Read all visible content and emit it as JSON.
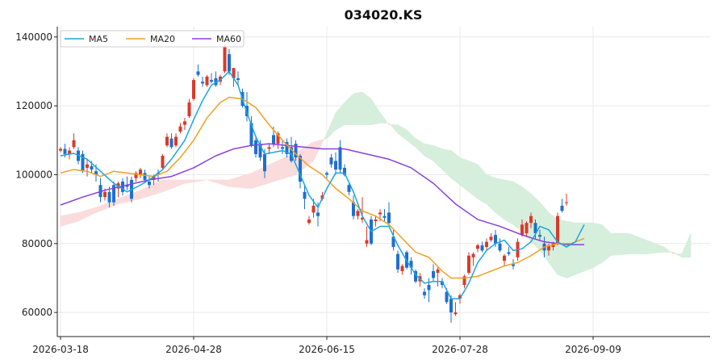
{
  "chart_data": {
    "type": "candlestick",
    "title": "034020.KS",
    "xlabel": "",
    "ylabel": "",
    "ylim": [
      53000,
      143000
    ],
    "y_ticks": [
      60000,
      80000,
      100000,
      120000,
      140000
    ],
    "y_tick_labels": [
      "60000",
      "80000",
      "100000",
      "120000",
      "140000"
    ],
    "x_ticks": [
      0,
      30,
      60,
      90,
      120
    ],
    "x_tick_labels": [
      "2026-03-18",
      "2026-04-28",
      "2026-06-15",
      "2026-07-28",
      "2026-09-09"
    ],
    "x_range": [
      -1,
      146
    ],
    "grid": true,
    "legend": {
      "placement": "top-left",
      "entries": [
        "MA5",
        "MA20",
        "MA60"
      ]
    },
    "colors": {
      "up": "#d93a2b",
      "down": "#1f6fd1",
      "ma5": "#1aa6e0",
      "ma20": "#f0a020",
      "ma60": "#8a3fe0",
      "cloud_bull": "#d6eedc",
      "cloud_bear": "#fbdcdc"
    },
    "candles": [
      [
        107000,
        108000,
        106500,
        107500
      ],
      [
        107500,
        109000,
        105000,
        106000
      ],
      [
        106000,
        108000,
        104500,
        107000
      ],
      [
        108000,
        112000,
        107500,
        110000
      ],
      [
        107000,
        108000,
        103000,
        104000
      ],
      [
        106000,
        107000,
        100500,
        101000
      ],
      [
        102000,
        104500,
        99500,
        103000
      ],
      [
        102500,
        104000,
        100500,
        101500
      ],
      [
        101000,
        103000,
        98000,
        100000
      ],
      [
        97000,
        99000,
        92000,
        93500
      ],
      [
        93500,
        96000,
        92500,
        95000
      ],
      [
        95000,
        96500,
        90500,
        92000
      ],
      [
        97000,
        98000,
        91000,
        92000
      ],
      [
        96000,
        98000,
        93500,
        97500
      ],
      [
        98000,
        99000,
        94000,
        95000
      ],
      [
        97000,
        99500,
        95500,
        96500
      ],
      [
        98500,
        99500,
        92000,
        93000
      ],
      [
        99000,
        101000,
        98000,
        100500
      ],
      [
        100000,
        102000,
        99000,
        101500
      ],
      [
        100500,
        101500,
        97500,
        98500
      ],
      [
        98000,
        99500,
        96000,
        97000
      ],
      [
        98500,
        100000,
        97000,
        99500
      ],
      [
        100500,
        101500,
        98000,
        100000
      ],
      [
        102000,
        106000,
        101500,
        105500
      ],
      [
        108500,
        112000,
        108000,
        111000
      ],
      [
        110500,
        112000,
        107500,
        108000
      ],
      [
        108500,
        112000,
        108000,
        111000
      ],
      [
        112500,
        115000,
        112000,
        114000
      ],
      [
        114500,
        116500,
        113000,
        115500
      ],
      [
        117000,
        122000,
        116500,
        121000
      ],
      [
        122000,
        128000,
        121500,
        127500
      ],
      [
        130000,
        132000,
        128500,
        129000
      ],
      [
        127000,
        128500,
        125500,
        126500
      ],
      [
        126000,
        129000,
        125500,
        128500
      ],
      [
        127500,
        129500,
        126500,
        127000
      ],
      [
        128000,
        130000,
        125500,
        126000
      ],
      [
        127000,
        129000,
        126000,
        128500
      ],
      [
        130000,
        138000,
        129500,
        137000
      ],
      [
        135000,
        136500,
        129000,
        130000
      ],
      [
        128000,
        131000,
        125500,
        131000
      ],
      [
        128000,
        130000,
        126000,
        127500
      ],
      [
        124000,
        125000,
        119500,
        120000
      ],
      [
        120000,
        124000,
        115500,
        117000
      ],
      [
        115000,
        117000,
        108000,
        108500
      ],
      [
        110000,
        111500,
        105000,
        106000
      ],
      [
        109000,
        110000,
        104000,
        105000
      ],
      [
        106000,
        107500,
        99000,
        101000
      ],
      [
        107500,
        109000,
        106000,
        108000
      ],
      [
        111500,
        114000,
        108000,
        109000
      ],
      [
        109000,
        112500,
        107500,
        112000
      ],
      [
        108000,
        110000,
        106000,
        107500
      ],
      [
        109500,
        110500,
        105000,
        106000
      ],
      [
        108000,
        111000,
        103500,
        104000
      ],
      [
        109000,
        110000,
        104000,
        105000
      ],
      [
        105500,
        106000,
        96000,
        98000
      ],
      [
        95000,
        97000,
        90000,
        93000
      ],
      [
        86000,
        88000,
        85500,
        87000
      ],
      [
        89000,
        93000,
        87500,
        91000
      ],
      [
        89000,
        92000,
        85000,
        88000
      ],
      [
        93000,
        95000,
        92500,
        94000
      ],
      [
        100500,
        101000,
        99000,
        100000
      ],
      [
        105000,
        106000,
        102000,
        103000
      ],
      [
        104000,
        106500,
        100000,
        101500
      ],
      [
        108000,
        110000,
        100500,
        101500
      ],
      [
        102000,
        103000,
        99500,
        100000
      ],
      [
        97000,
        97500,
        94000,
        95000
      ],
      [
        92000,
        94000,
        87000,
        88000
      ],
      [
        88000,
        90000,
        87000,
        89500
      ],
      [
        87000,
        93500,
        86000,
        87500
      ],
      [
        80000,
        85000,
        79000,
        81000
      ],
      [
        87000,
        88000,
        79500,
        80000
      ],
      [
        86500,
        88000,
        85000,
        87000
      ],
      [
        88500,
        90000,
        86500,
        89000
      ],
      [
        88000,
        90000,
        86500,
        87500
      ],
      [
        89000,
        92000,
        85000,
        86000
      ],
      [
        82000,
        84000,
        78000,
        79000
      ],
      [
        77000,
        78000,
        71500,
        72500
      ],
      [
        72000,
        74000,
        71000,
        73500
      ],
      [
        77500,
        78000,
        72500,
        73000
      ],
      [
        75000,
        76000,
        71000,
        73000
      ],
      [
        72000,
        72500,
        68500,
        69000
      ],
      [
        69000,
        71500,
        67500,
        70500
      ],
      [
        66000,
        67000,
        64000,
        65000
      ],
      [
        68000,
        70000,
        63000,
        66500
      ],
      [
        72000,
        74000,
        69000,
        70000
      ],
      [
        71500,
        73000,
        67500,
        72500
      ],
      [
        69000,
        70000,
        67000,
        68000
      ],
      [
        66000,
        67000,
        62500,
        63000
      ],
      [
        64000,
        65000,
        57000,
        60000
      ],
      [
        59500,
        63000,
        59000,
        60000
      ],
      [
        64000,
        65500,
        62500,
        65000
      ],
      [
        68000,
        71000,
        67000,
        70500
      ],
      [
        71500,
        77500,
        71000,
        76500
      ],
      [
        76000,
        77500,
        73500,
        77000
      ],
      [
        78500,
        80000,
        77500,
        79500
      ],
      [
        79500,
        80500,
        77500,
        78000
      ],
      [
        79000,
        81500,
        78000,
        80500
      ],
      [
        81000,
        83000,
        80500,
        82000
      ],
      [
        82500,
        84000,
        79000,
        80000
      ],
      [
        80000,
        81500,
        77500,
        78000
      ],
      [
        75000,
        77000,
        73500,
        76500
      ],
      [
        77500,
        79000,
        76500,
        77000
      ],
      [
        74000,
        75500,
        72500,
        73500
      ],
      [
        76000,
        81500,
        75000,
        80500
      ],
      [
        82500,
        87000,
        82000,
        85500
      ],
      [
        83000,
        86500,
        82000,
        86000
      ],
      [
        86000,
        89000,
        84500,
        88000
      ],
      [
        86000,
        87000,
        81500,
        83000
      ],
      [
        82500,
        84000,
        81000,
        82000
      ],
      [
        80000,
        82000,
        76000,
        78000
      ],
      [
        78000,
        80000,
        76500,
        79500
      ],
      [
        79000,
        80500,
        78000,
        80000
      ],
      [
        80000,
        89000,
        79500,
        88000
      ],
      [
        91000,
        93000,
        89000,
        89500
      ],
      [
        92000,
        94500,
        91000,
        92000
      ]
    ],
    "ma5": [
      [
        0,
        105500
      ],
      [
        3,
        106200
      ],
      [
        6,
        104500
      ],
      [
        9,
        101000
      ],
      [
        12,
        97500
      ],
      [
        15,
        95000
      ],
      [
        18,
        97000
      ],
      [
        20,
        98500
      ],
      [
        23,
        101500
      ],
      [
        25,
        104500
      ],
      [
        28,
        110000
      ],
      [
        30,
        116000
      ],
      [
        32,
        121500
      ],
      [
        34,
        126000
      ],
      [
        36,
        127500
      ],
      [
        38,
        130000
      ],
      [
        40,
        126000
      ],
      [
        42,
        118000
      ],
      [
        44,
        111000
      ],
      [
        46,
        106000
      ],
      [
        48,
        106500
      ],
      [
        50,
        107000
      ],
      [
        52,
        106000
      ],
      [
        54,
        100000
      ],
      [
        56,
        94000
      ],
      [
        58,
        90500
      ],
      [
        60,
        96000
      ],
      [
        62,
        100500
      ],
      [
        64,
        100500
      ],
      [
        66,
        95000
      ],
      [
        68,
        88000
      ],
      [
        70,
        83500
      ],
      [
        72,
        85000
      ],
      [
        74,
        85000
      ],
      [
        76,
        79500
      ],
      [
        78,
        75000
      ],
      [
        80,
        71000
      ],
      [
        82,
        68500
      ],
      [
        84,
        69000
      ],
      [
        86,
        69000
      ],
      [
        88,
        64000
      ],
      [
        90,
        64000
      ],
      [
        92,
        68500
      ],
      [
        94,
        74500
      ],
      [
        96,
        78000
      ],
      [
        98,
        80000
      ],
      [
        100,
        81000
      ],
      [
        102,
        78000
      ],
      [
        104,
        78500
      ],
      [
        106,
        80500
      ],
      [
        108,
        85000
      ],
      [
        110,
        84000
      ],
      [
        112,
        80500
      ],
      [
        114,
        79000
      ],
      [
        116,
        80500
      ],
      [
        118,
        85500
      ]
    ],
    "ma20": [
      [
        0,
        100500
      ],
      [
        3,
        101500
      ],
      [
        6,
        101000
      ],
      [
        9,
        99500
      ],
      [
        12,
        101000
      ],
      [
        15,
        100500
      ],
      [
        18,
        100000
      ],
      [
        21,
        99500
      ],
      [
        24,
        101000
      ],
      [
        27,
        105000
      ],
      [
        30,
        110000
      ],
      [
        33,
        116500
      ],
      [
        36,
        121000
      ],
      [
        38,
        122500
      ],
      [
        41,
        122000
      ],
      [
        44,
        119500
      ],
      [
        47,
        114500
      ],
      [
        50,
        110000
      ],
      [
        53,
        106000
      ],
      [
        56,
        102500
      ],
      [
        59,
        100000
      ],
      [
        62,
        96000
      ],
      [
        65,
        93000
      ],
      [
        68,
        89500
      ],
      [
        71,
        88000
      ],
      [
        74,
        85500
      ],
      [
        77,
        81500
      ],
      [
        80,
        77500
      ],
      [
        83,
        76000
      ],
      [
        86,
        72000
      ],
      [
        88,
        70000
      ],
      [
        91,
        70000
      ],
      [
        94,
        70500
      ],
      [
        97,
        72000
      ],
      [
        100,
        73500
      ],
      [
        103,
        74500
      ],
      [
        106,
        76500
      ],
      [
        109,
        79000
      ],
      [
        112,
        80000
      ],
      [
        115,
        80000
      ],
      [
        118,
        81500
      ]
    ],
    "ma60": [
      [
        0,
        91200
      ],
      [
        5,
        93500
      ],
      [
        10,
        95500
      ],
      [
        15,
        97000
      ],
      [
        20,
        98500
      ],
      [
        25,
        99500
      ],
      [
        30,
        102000
      ],
      [
        35,
        105500
      ],
      [
        39,
        107500
      ],
      [
        43,
        108500
      ],
      [
        47,
        109000
      ],
      [
        51,
        108500
      ],
      [
        55,
        108000
      ],
      [
        59,
        107500
      ],
      [
        64,
        107500
      ],
      [
        69,
        106000
      ],
      [
        74,
        104500
      ],
      [
        79,
        102000
      ],
      [
        84,
        97500
      ],
      [
        89,
        91500
      ],
      [
        94,
        87000
      ],
      [
        99,
        85000
      ],
      [
        104,
        82500
      ],
      [
        109,
        80500
      ],
      [
        114,
        79700
      ],
      [
        118,
        79700
      ]
    ],
    "senkou_a": [
      [
        0,
        85000
      ],
      [
        4,
        86500
      ],
      [
        8,
        89000
      ],
      [
        13,
        91500
      ],
      [
        18,
        93000
      ],
      [
        23,
        95000
      ],
      [
        28,
        97500
      ],
      [
        33,
        98500
      ],
      [
        38,
        96500
      ],
      [
        43,
        96000
      ],
      [
        48,
        98000
      ],
      [
        53,
        100000
      ],
      [
        57,
        104000
      ],
      [
        60,
        112000
      ],
      [
        62,
        118000
      ],
      [
        64,
        121000
      ],
      [
        66,
        123500
      ],
      [
        68,
        124000
      ],
      [
        70,
        122000
      ],
      [
        72,
        118000
      ],
      [
        74,
        114500
      ],
      [
        76,
        114500
      ],
      [
        78,
        113000
      ],
      [
        80,
        110500
      ],
      [
        82,
        109000
      ],
      [
        84,
        108500
      ],
      [
        86,
        107500
      ],
      [
        88,
        107000
      ],
      [
        90,
        105000
      ],
      [
        92,
        104000
      ],
      [
        94,
        103000
      ],
      [
        96,
        100000
      ],
      [
        98,
        99000
      ],
      [
        100,
        98500
      ],
      [
        102,
        98000
      ],
      [
        104,
        96500
      ],
      [
        106,
        94500
      ],
      [
        108,
        92000
      ],
      [
        110,
        89000
      ],
      [
        112,
        87000
      ],
      [
        114,
        86500
      ],
      [
        116,
        86000
      ],
      [
        118,
        86000
      ],
      [
        120,
        86000
      ],
      [
        122,
        85500
      ],
      [
        124,
        83000
      ],
      [
        128,
        83000
      ],
      [
        132,
        81000
      ],
      [
        136,
        79000
      ],
      [
        138,
        77000
      ],
      [
        140,
        77000
      ],
      [
        141,
        80000
      ],
      [
        142,
        83000
      ]
    ],
    "senkou_b": [
      [
        0,
        88000
      ],
      [
        4,
        89000
      ],
      [
        8,
        90500
      ],
      [
        13,
        93000
      ],
      [
        18,
        95500
      ],
      [
        23,
        98500
      ],
      [
        28,
        98500
      ],
      [
        33,
        98500
      ],
      [
        38,
        98500
      ],
      [
        43,
        100500
      ],
      [
        48,
        103500
      ],
      [
        53,
        106500
      ],
      [
        57,
        109500
      ],
      [
        60,
        110500
      ],
      [
        62,
        113000
      ],
      [
        64,
        114500
      ],
      [
        66,
        114500
      ],
      [
        68,
        114500
      ],
      [
        70,
        114500
      ],
      [
        72,
        115000
      ],
      [
        74,
        115000
      ],
      [
        76,
        112000
      ],
      [
        78,
        110000
      ],
      [
        80,
        108000
      ],
      [
        82,
        105500
      ],
      [
        84,
        104000
      ],
      [
        86,
        101500
      ],
      [
        88,
        99000
      ],
      [
        90,
        97000
      ],
      [
        92,
        95000
      ],
      [
        94,
        93000
      ],
      [
        96,
        91500
      ],
      [
        98,
        89000
      ],
      [
        100,
        87000
      ],
      [
        102,
        85500
      ],
      [
        104,
        83500
      ],
      [
        106,
        80500
      ],
      [
        108,
        78000
      ],
      [
        110,
        74500
      ],
      [
        112,
        71000
      ],
      [
        114,
        70000
      ],
      [
        116,
        71000
      ],
      [
        118,
        72000
      ],
      [
        120,
        73000
      ],
      [
        122,
        74500
      ],
      [
        124,
        76500
      ],
      [
        128,
        77000
      ],
      [
        132,
        77000
      ],
      [
        136,
        77500
      ],
      [
        138,
        77500
      ],
      [
        140,
        76000
      ],
      [
        141,
        76000
      ],
      [
        142,
        76000
      ]
    ]
  }
}
